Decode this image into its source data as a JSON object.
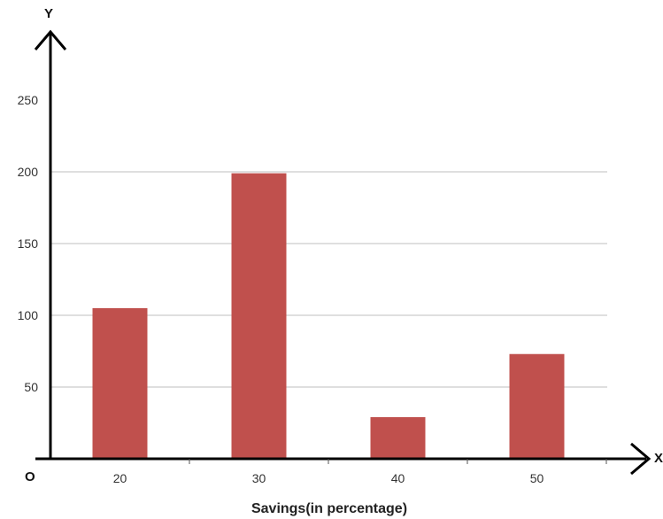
{
  "chart_data": {
    "type": "bar",
    "categories": [
      "20",
      "30",
      "40",
      "50"
    ],
    "values": [
      105,
      199,
      29,
      73
    ],
    "title": "",
    "xlabel": "Savings(in percentage)",
    "ylabel": "",
    "ylim": [
      0,
      250
    ],
    "yticks": [
      50,
      100,
      150,
      200,
      250
    ],
    "grid": true,
    "axis_letters": {
      "x": "X",
      "y": "Y",
      "origin": "O"
    },
    "colors": {
      "bar": "#c0504d",
      "grid": "#bfbfbf",
      "axis": "#000000"
    }
  }
}
